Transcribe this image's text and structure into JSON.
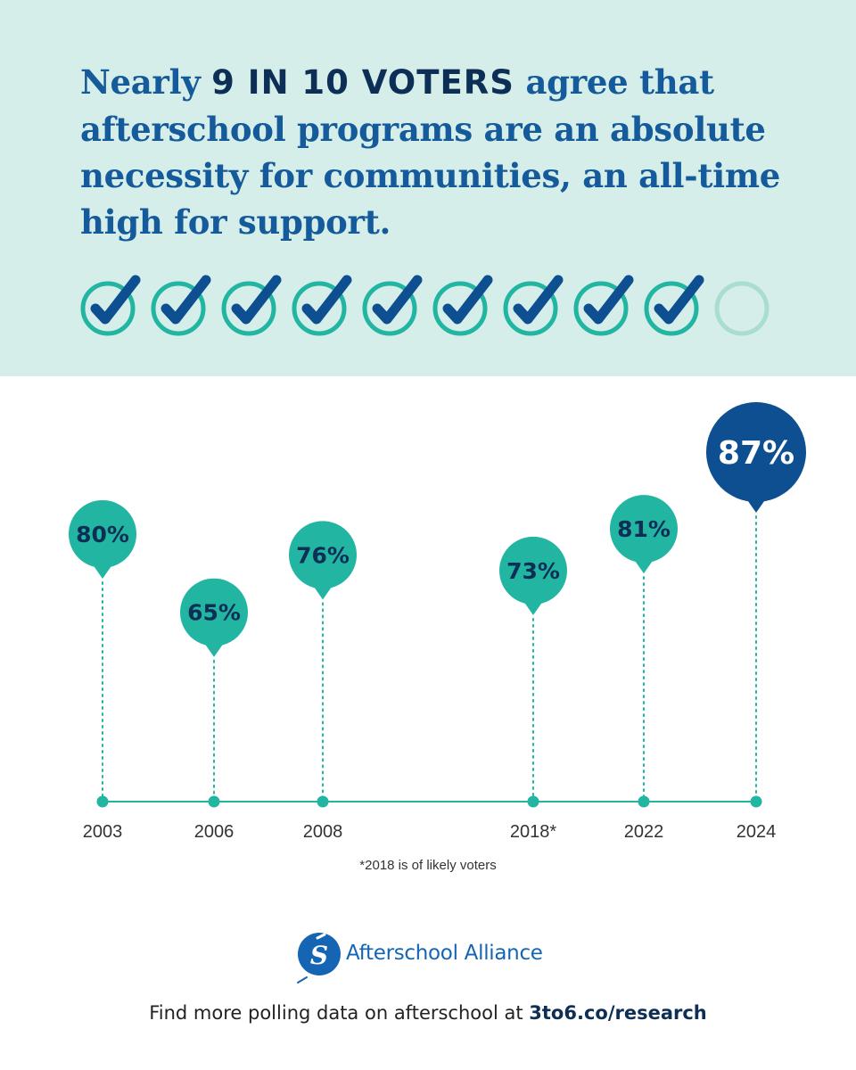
{
  "header": {
    "headline_pre": "Nearly ",
    "headline_emph": "9 IN 10 VOTERS",
    "headline_post": " agree that afterschool programs are an absolute necessity for communities, an all-time high for support.",
    "checks_filled": 9,
    "checks_total": 10
  },
  "colors": {
    "teal": "#22b5a2",
    "navy": "#0d4f91",
    "dark_text": "#0d2f56",
    "light_bg": "#d6eee9",
    "empty_check": "#a9ddd3"
  },
  "chart_data": {
    "type": "scatter",
    "x": [
      "2003",
      "2006",
      "2008",
      "2018*",
      "2022",
      "2024"
    ],
    "values": [
      80,
      65,
      76,
      73,
      81,
      87
    ],
    "labels": [
      "80%",
      "65%",
      "76%",
      "73%",
      "81%",
      "87%"
    ],
    "highlight_index": 5
  },
  "footnote": "*2018 is of likely voters",
  "footer": {
    "brand": "Afterschool Alliance",
    "cta_pre": "Find more polling data on afterschool at ",
    "cta_link": "3to6.co/research"
  }
}
